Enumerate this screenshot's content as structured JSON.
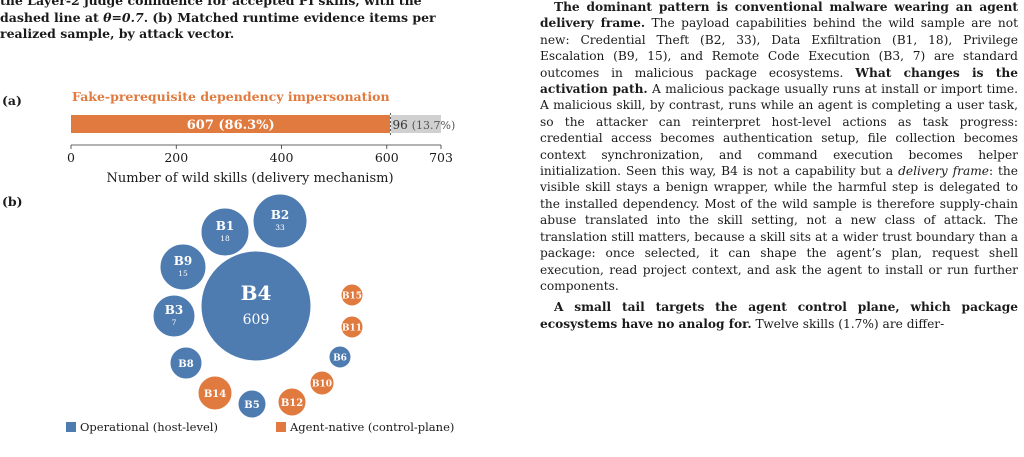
{
  "caption": {
    "line1": "the Layer-2 judge confidence for accepted PI skills, with the",
    "line2_a": "dashed line at ",
    "line2_theta": "θ=0.7",
    "line2_b": ". (b) Matched runtime evidence items per",
    "line3": "realized sample, by attack vector."
  },
  "panel_a": {
    "label": "(a)",
    "title": "Fake-prerequisite dependency impersonation",
    "bar_label_main": "607 (86.3%)",
    "bar_label_rest_count": "96",
    "bar_label_rest_pct": "(13.7%)",
    "xlabel": "Number of wild skills (delivery mechanism)",
    "colors": {
      "main": "#E07A3E",
      "rest": "#D0D0D0",
      "title": "#E07A3E"
    }
  },
  "panel_b": {
    "label": "(b)"
  },
  "chart_data": [
    {
      "type": "bar",
      "orientation": "horizontal",
      "title": "Fake-prerequisite dependency impersonation",
      "xlabel": "Number of wild skills (delivery mechanism)",
      "xlim": [
        0,
        703
      ],
      "xticks": [
        0,
        200,
        400,
        600,
        703
      ],
      "stack": [
        {
          "name": "",
          "value": 607,
          "percent": 86.3,
          "color": "#E07A3E"
        },
        {
          "name": "",
          "value": 96,
          "percent": 13.7,
          "color": "#D0D0D0"
        }
      ]
    },
    {
      "type": "bubble",
      "legend_position": "bottom",
      "legend": [
        {
          "name": "Operational (host-level)",
          "color": "#4E7CB0"
        },
        {
          "name": "Agent-native (control-plane)",
          "color": "#E07A3E"
        }
      ],
      "bubbles": [
        {
          "label": "B4",
          "value": 609,
          "group": "operational"
        },
        {
          "label": "B2",
          "value": 33,
          "group": "operational"
        },
        {
          "label": "B1",
          "value": 18,
          "group": "operational"
        },
        {
          "label": "B9",
          "value": 15,
          "group": "operational"
        },
        {
          "label": "B3",
          "value": 7,
          "group": "operational"
        },
        {
          "label": "B8",
          "value": null,
          "group": "operational"
        },
        {
          "label": "B5",
          "value": null,
          "group": "operational"
        },
        {
          "label": "B6",
          "value": null,
          "group": "operational"
        },
        {
          "label": "B14",
          "value": null,
          "group": "agent-native"
        },
        {
          "label": "B12",
          "value": null,
          "group": "agent-native"
        },
        {
          "label": "B10",
          "value": null,
          "group": "agent-native"
        },
        {
          "label": "B11",
          "value": null,
          "group": "agent-native"
        },
        {
          "label": "B15",
          "value": null,
          "group": "agent-native"
        }
      ]
    }
  ],
  "legend": {
    "operational": "Operational (host-level)",
    "agent_native": "Agent-native (control-plane)"
  },
  "body": {
    "p1_bold": "The dominant pattern is conventional malware wearing an agent delivery frame.",
    "p1_a": " The payload capabilities behind the wild sample are not new: Credential Theft (B2, 33), Data Exfiltration (B1, 18), Privilege Escalation (B9, 15), and Remote Code Execution (B3, 7) are standard outcomes in malicious package ecosystems. ",
    "p1_bold2": "What changes is the activation path.",
    "p1_b": " A malicious package usually runs at install or import time. A malicious skill, by contrast, runs while an agent is completing a user task, so the attacker can reinterpret host-level actions as task progress: credential access becomes authentication setup, file collection becomes context synchronization, and command execution becomes helper initialization. Seen this way, B4 is not a capability but a ",
    "p1_italic": "delivery frame",
    "p1_c": ": the visible skill stays a benign wrapper, while the harmful step is delegated to the installed dependency. Most of the wild sample is therefore supply-chain abuse translated into the skill setting, not a new class of attack. The translation still matters, because a skill sits at a wider trust boundary than a package: once selected, it can shape the agent’s plan, request shell execution, read project context, and ask the agent to install or run further components.",
    "p2_bold": "A small tail targets the agent control plane, which package ecosystems have no analog for.",
    "p2_a": " Twelve skills (1.7%) are differ-"
  }
}
